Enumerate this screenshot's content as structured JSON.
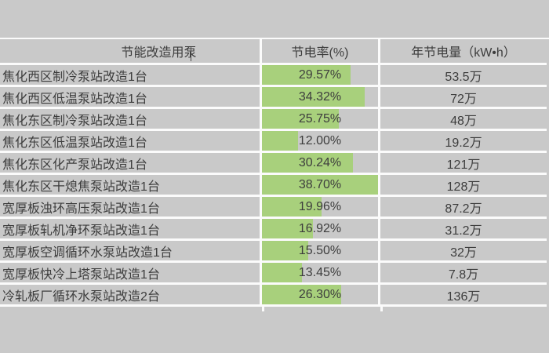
{
  "colors": {
    "page_background": "#c9c9c9",
    "separator": "#fbfbfb",
    "bar_green": "#a8d07c",
    "text": "#3d3d3d"
  },
  "header": {
    "pump_column": "节能改造用泵",
    "rate_column": "节电率(%)",
    "annual_column": "年节电量（kW•h）"
  },
  "bar_scale_max": 38.7,
  "rows": [
    {
      "name": "焦化西区制冷泵站改造1台",
      "rate": "29.57%",
      "rate_value": 29.57,
      "annual": "53.5万"
    },
    {
      "name": "焦化西区低温泵站改造1台",
      "rate": "34.32%",
      "rate_value": 34.32,
      "annual": "72万"
    },
    {
      "name": "焦化东区制冷泵站改造1台",
      "rate": "25.75%",
      "rate_value": 25.75,
      "annual": "48万"
    },
    {
      "name": "焦化东区低温泵站改造1台",
      "rate": "12.00%",
      "rate_value": 12.0,
      "annual": "19.2万"
    },
    {
      "name": "焦化东区化产泵站改造1台",
      "rate": "30.24%",
      "rate_value": 30.24,
      "annual": "121万"
    },
    {
      "name": "焦化东区干熄焦泵站改造1台",
      "rate": "38.70%",
      "rate_value": 38.7,
      "annual": "128万"
    },
    {
      "name": "宽厚板浊环高压泵站改造1台",
      "rate": "19.96%",
      "rate_value": 19.96,
      "annual": "87.2万"
    },
    {
      "name": "宽厚板轧机净环泵站改造1台",
      "rate": "16.92%",
      "rate_value": 16.92,
      "annual": "31.2万"
    },
    {
      "name": "宽厚板空调循环水泵站改造1台",
      "rate": "15.50%",
      "rate_value": 15.5,
      "annual": "32万"
    },
    {
      "name": "宽厚板快冷上塔泵站改造1台",
      "rate": "13.45%",
      "rate_value": 13.45,
      "annual": "7.8万"
    },
    {
      "name": "冷轧板厂循环水泵站改造2台",
      "rate": "26.30%",
      "rate_value": 26.3,
      "annual": "136万"
    }
  ],
  "chart_data": {
    "type": "table",
    "title": "",
    "columns": [
      "节能改造用泵",
      "节电率(%)",
      "年节电量（kW•h）"
    ],
    "rows": [
      [
        "焦化西区制冷泵站改造1台",
        29.57,
        "53.5万"
      ],
      [
        "焦化西区低温泵站改造1台",
        34.32,
        "72万"
      ],
      [
        "焦化东区制冷泵站改造1台",
        25.75,
        "48万"
      ],
      [
        "焦化东区低温泵站改造1台",
        12.0,
        "19.2万"
      ],
      [
        "焦化东区化产泵站改造1台",
        30.24,
        "121万"
      ],
      [
        "焦化东区干熄焦泵站改造1台",
        38.7,
        "128万"
      ],
      [
        "宽厚板浊环高压泵站改造1台",
        19.96,
        "87.2万"
      ],
      [
        "宽厚板轧机净环泵站改造1台",
        16.92,
        "31.2万"
      ],
      [
        "宽厚板空调循环水泵站改造1台",
        15.5,
        "32万"
      ],
      [
        "宽厚板快冷上塔泵站改造1台",
        13.45,
        "7.8万"
      ],
      [
        "冷轧板厂循环水泵站改造2台",
        26.3,
        "136万"
      ]
    ],
    "bar_series": {
      "name": "节电率(%)",
      "values": [
        29.57,
        34.32,
        25.75,
        12.0,
        30.24,
        38.7,
        19.96,
        16.92,
        15.5,
        13.45,
        26.3
      ],
      "bar_axis_max": 38.7,
      "bar_color": "#a8d07c"
    },
    "layout": {
      "grid": "white separators on gray",
      "legend": "none"
    }
  }
}
